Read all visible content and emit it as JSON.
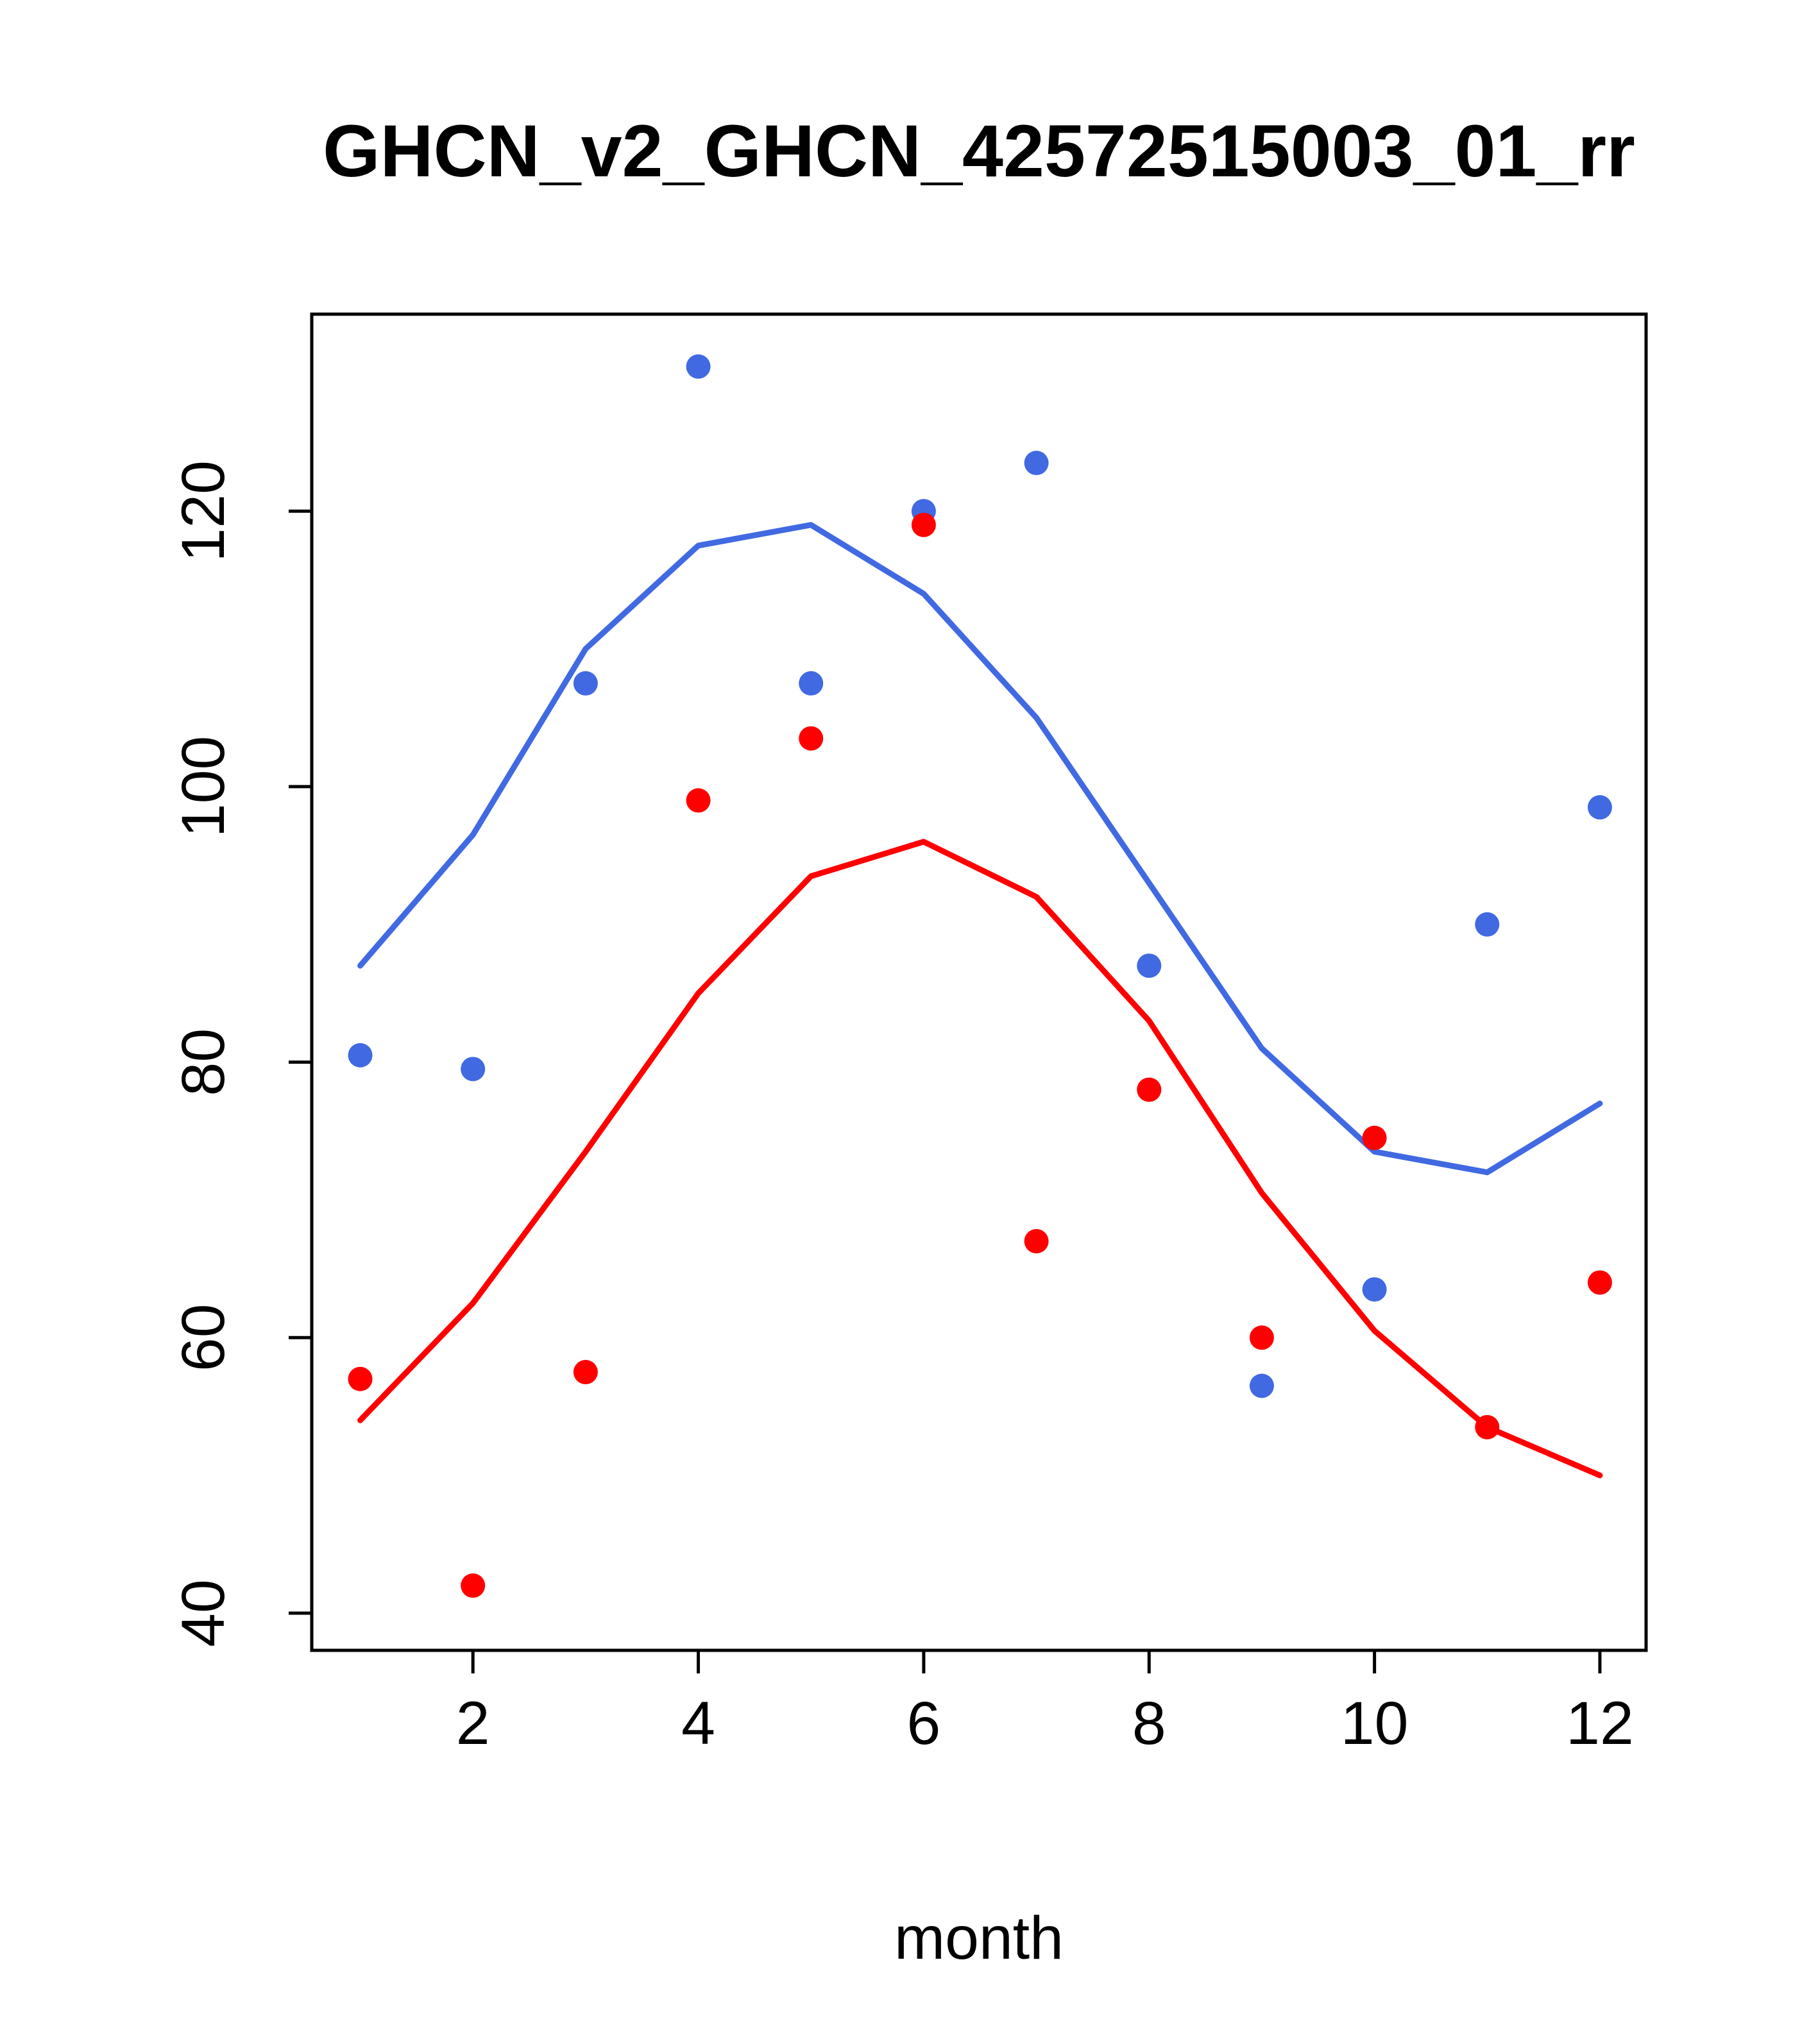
{
  "chart_data": {
    "type": "line",
    "title": "GHCN_v2_GHCN_42572515003_01_rr",
    "xlabel": "month",
    "ylabel": "",
    "x": [
      1,
      2,
      3,
      4,
      5,
      6,
      7,
      8,
      9,
      10,
      11,
      12
    ],
    "xticks": [
      2,
      4,
      6,
      8,
      10,
      12
    ],
    "yticks": [
      40,
      60,
      80,
      100,
      120
    ],
    "xlim": [
      0.57,
      12.41
    ],
    "ylim": [
      37.3,
      134.3
    ],
    "grid": false,
    "legend": "none",
    "colors": {
      "blue": "#4169E1",
      "red": "#FF0000",
      "axis": "#000000",
      "background": "#FFFFFF"
    },
    "series": [
      {
        "name": "blue-smoothed-line",
        "style": "line",
        "color": "#4169E1",
        "values": [
          87,
          96.5,
          110,
          117.5,
          119,
          114,
          105,
          93,
          81,
          73.5,
          72,
          77
        ]
      },
      {
        "name": "red-smoothed-line",
        "style": "line",
        "color": "#FF0000",
        "values": [
          54,
          62.5,
          73.5,
          85,
          93.5,
          96,
          92,
          83,
          70.5,
          60.5,
          53.5,
          50
        ]
      },
      {
        "name": "blue-monthly-points",
        "style": "points",
        "color": "#4169E1",
        "values": [
          80.5,
          79.5,
          107.5,
          130.5,
          107.5,
          120,
          123.5,
          87,
          56.5,
          63.5,
          90,
          98.5
        ]
      },
      {
        "name": "red-monthly-points",
        "style": "points",
        "color": "#FF0000",
        "values": [
          57,
          42,
          57.5,
          99,
          103.5,
          119,
          67,
          78,
          60,
          74.5,
          53.5,
          64
        ]
      }
    ]
  }
}
